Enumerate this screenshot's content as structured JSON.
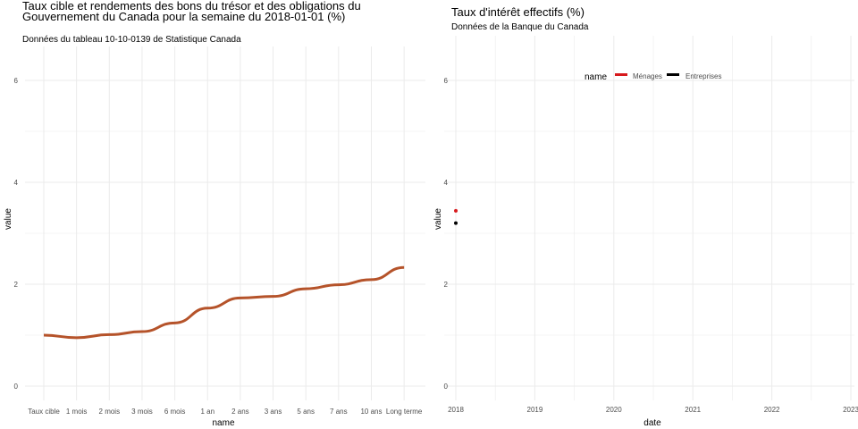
{
  "chart_data": [
    {
      "type": "line",
      "title": "Taux cible et rendements des bons du trésor et des obligations du Gouvernement du Canada pour la semaine du 2018-01-01 (%)",
      "subtitle": "Données du tableau 10-10-0139 de Statistique Canada",
      "xlabel": "name",
      "ylabel": "value",
      "categories": [
        "Taux cible",
        "1 mois",
        "2 mois",
        "3 mois",
        "6 mois",
        "1 an",
        "2 ans",
        "3 ans",
        "5 ans",
        "7 ans",
        "10 ans",
        "Long terme"
      ],
      "values": [
        1.0,
        0.95,
        1.01,
        1.07,
        1.24,
        1.53,
        1.73,
        1.76,
        1.91,
        1.99,
        2.09,
        2.33
      ],
      "yticks": [
        0,
        2,
        4,
        6
      ],
      "ylim": [
        -0.2,
        6.8
      ],
      "grid": true,
      "color": "#B5532A"
    },
    {
      "type": "scatter",
      "title": "Taux d'intérêt effectifs (%)",
      "subtitle": "Données de la Banque du Canada",
      "xlabel": "date",
      "ylabel": "value",
      "xticks": [
        "2018",
        "2019",
        "2020",
        "2021",
        "2022",
        "2023"
      ],
      "yticks": [
        0,
        2,
        4,
        6
      ],
      "ylim": [
        -0.2,
        6.8
      ],
      "grid": true,
      "legend": {
        "title": "name",
        "placement": "top"
      },
      "series": [
        {
          "name": "Ménages",
          "color": "#D7191C",
          "x": [
            "2018"
          ],
          "values": [
            3.44
          ]
        },
        {
          "name": "Entreprises",
          "color": "#000000",
          "x": [
            "2018"
          ],
          "values": [
            3.2
          ]
        }
      ]
    }
  ]
}
